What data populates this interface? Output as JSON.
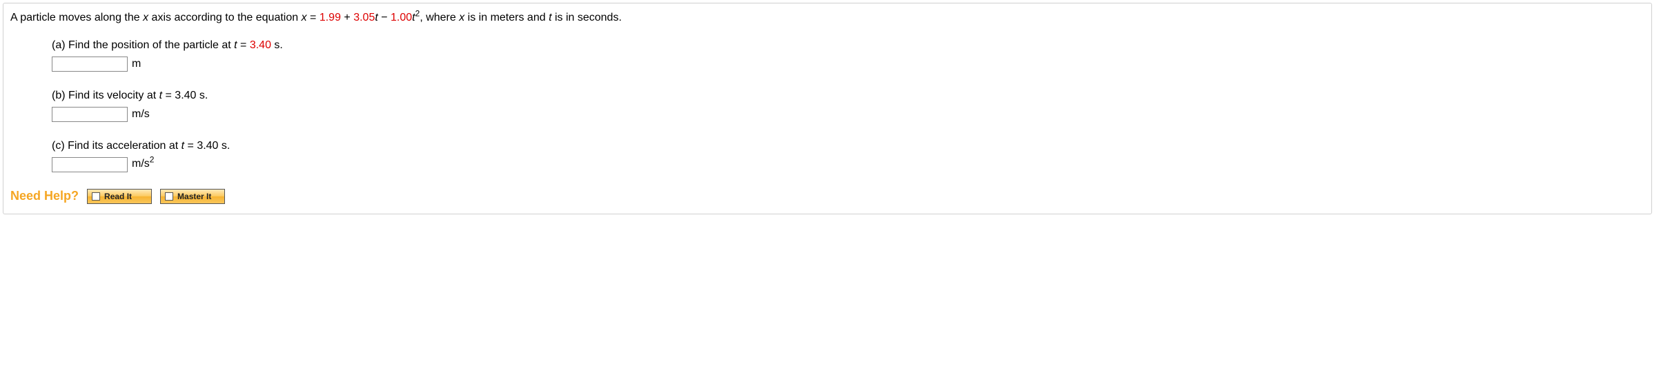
{
  "problem": {
    "statement_prefix": "A particle moves along the ",
    "xaxis_var": "x",
    "statement_mid1": " axis according to the equation ",
    "equation_var": "x",
    "equation_eq": " = ",
    "coef_a": "1.99",
    "plus1": " + ",
    "coef_b": "3.05",
    "t_var1": "t",
    "minus": " − ",
    "coef_c": "1.00",
    "t_var2": "t",
    "t_exp": "2",
    "statement_mid2": ", where ",
    "x_var2": "x",
    "statement_mid3": " is in meters and ",
    "t_var3": "t",
    "statement_suffix": " is in seconds."
  },
  "parts": {
    "a": {
      "prompt_prefix": "(a) Find the position of the particle at ",
      "t_var": "t",
      "eq": " = ",
      "time_value": "3.40",
      "time_unit": " s.",
      "answer_value": "",
      "unit": "m"
    },
    "b": {
      "prompt_prefix": "(b) Find its velocity at ",
      "t_var": "t",
      "eq": " = ",
      "time_value": "3.40 s.",
      "answer_value": "",
      "unit": "m/s"
    },
    "c": {
      "prompt_prefix": "(c) Find its acceleration at ",
      "t_var": "t",
      "eq": " = ",
      "time_value": "3.40 s.",
      "answer_value": "",
      "unit_base": "m/s",
      "unit_exp": "2"
    }
  },
  "help": {
    "label": "Need Help?",
    "read_label": "Read It",
    "master_label": "Master It"
  },
  "colors": {
    "red_text": "#dd0000",
    "orange_text": "#f5a623",
    "border": "#d0d0d0",
    "input_border": "#888888",
    "button_border": "#555555"
  }
}
